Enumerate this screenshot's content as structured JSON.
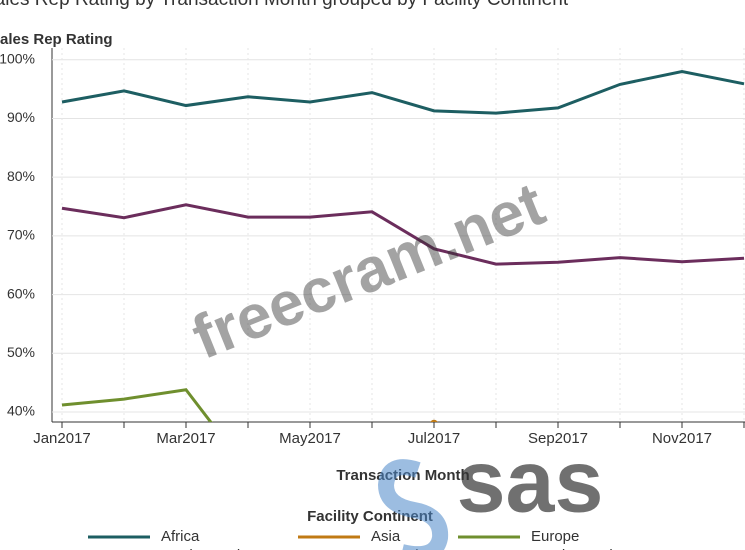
{
  "chart_data": {
    "type": "line",
    "title": "Sales Rep Rating by Transaction Month grouped by Facility Continent",
    "y_label": "Sales Rep Rating",
    "x_label": "Transaction Month",
    "legend_title": "Facility Continent",
    "categories": [
      "Jan2017",
      null,
      "Mar2017",
      null,
      "May2017",
      null,
      "Jul2017",
      null,
      "Sep2017",
      null,
      "Nov2017",
      null
    ],
    "series": [
      {
        "name": "Africa",
        "color": "#1d5e62",
        "values": [
          92.8,
          94.7,
          92.2,
          93.7,
          92.8,
          94.4,
          91.3,
          90.9,
          91.8,
          95.8,
          98.0,
          95.9
        ]
      },
      {
        "name": "Asia",
        "color": "#c07a14",
        "values": [
          null,
          null,
          null,
          null,
          null,
          null,
          38,
          null,
          null,
          null,
          null,
          null
        ]
      },
      {
        "name": "Europe",
        "color": "#6f8f2e",
        "values": [
          41.2,
          42.2,
          43.8,
          30,
          null,
          null,
          null,
          null,
          null,
          null,
          null,
          null
        ]
      },
      {
        "name": "North America",
        "color": "#6b2d5c",
        "values": [
          74.7,
          73.1,
          75.3,
          73.2,
          73.2,
          74.1,
          67.8,
          65.2,
          65.5,
          66.3,
          65.6,
          66.2
        ]
      },
      {
        "name": "Oceania",
        "color": "#3c8dbc",
        "values": [
          null,
          null,
          null,
          null,
          null,
          null,
          null,
          null,
          null,
          null,
          null,
          null
        ]
      },
      {
        "name": "South America",
        "color": "#9a6a3a",
        "values": [
          null,
          null,
          null,
          null,
          null,
          null,
          null,
          null,
          null,
          null,
          null,
          null
        ]
      }
    ],
    "ylim": [
      38.3,
      102
    ],
    "yticks": [
      {
        "value": 40,
        "label": "40%"
      },
      {
        "value": 50,
        "label": "50%"
      },
      {
        "value": 60,
        "label": "60%"
      },
      {
        "value": 70,
        "label": "70%"
      },
      {
        "value": 80,
        "label": "80%"
      },
      {
        "value": 90,
        "label": "90%"
      },
      {
        "value": 100,
        "label": "100%"
      }
    ],
    "grid": true,
    "watermark": "freecram.net",
    "logo": "sas"
  }
}
